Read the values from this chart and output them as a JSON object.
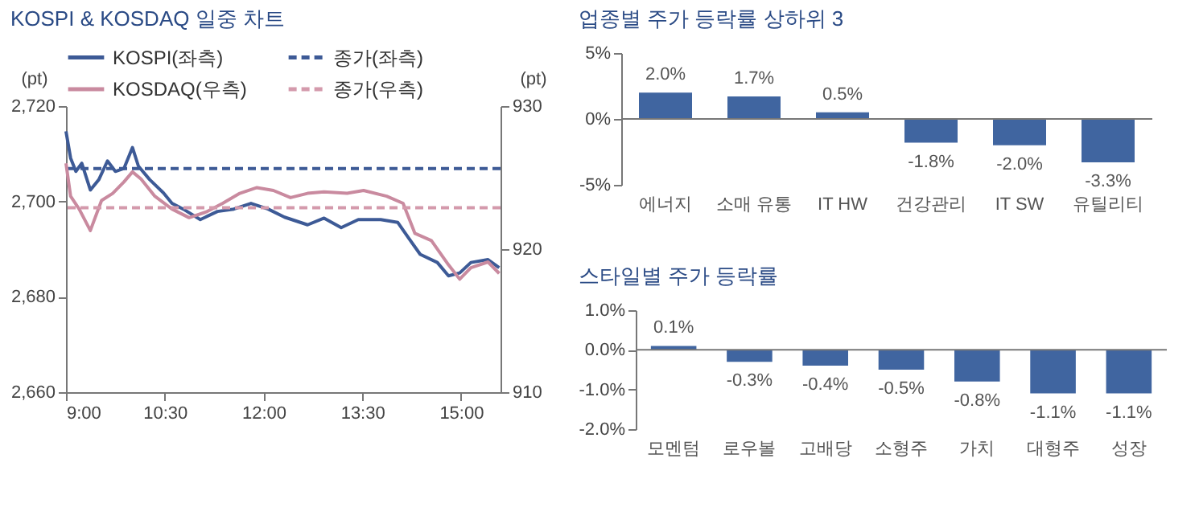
{
  "chart_data": [
    {
      "type": "line",
      "title": "KOSPI & KOSDAQ 일중 차트",
      "ylabel": "(pt)",
      "y2label": "(pt)",
      "legend": "top",
      "xlim": [
        9,
        15.6
      ],
      "xticks": [
        {
          "value": 9,
          "label": "9:00"
        },
        {
          "value": 10.5,
          "label": "10:30"
        },
        {
          "value": 12,
          "label": "12:00"
        },
        {
          "value": 13.5,
          "label": "13:30"
        },
        {
          "value": 15,
          "label": "15:00"
        }
      ],
      "ylim": [
        2660,
        2720
      ],
      "yticks": [
        {
          "value": 2660,
          "label": "2,660"
        },
        {
          "value": 2680,
          "label": "2,680"
        },
        {
          "value": 2700,
          "label": "2,700"
        },
        {
          "value": 2720,
          "label": "2,720"
        }
      ],
      "y2lim": [
        910,
        930
      ],
      "y2ticks": [
        910,
        920,
        930
      ],
      "series": [
        {
          "name": "KOSPI(좌측)",
          "color": "#3d5a96",
          "x": [
            9.0,
            9.07,
            9.15,
            9.24,
            9.37,
            9.5,
            9.63,
            9.75,
            9.88,
            10.01,
            10.1,
            10.27,
            10.48,
            10.61,
            10.78,
            11.04,
            11.3,
            11.55,
            11.81,
            12.07,
            12.32,
            12.67,
            12.92,
            13.18,
            13.44,
            13.78,
            14.04,
            14.21,
            14.38,
            14.64,
            14.81,
            14.98,
            15.15,
            15.41,
            15.58
          ],
          "values": [
            2714.7,
            2709.1,
            2706.3,
            2708,
            2702.4,
            2704.6,
            2708.5,
            2706.3,
            2706.9,
            2711.3,
            2707.4,
            2704.6,
            2701.8,
            2699.6,
            2698.4,
            2696.2,
            2697.9,
            2698.4,
            2699.6,
            2698.4,
            2696.7,
            2695.1,
            2696.5,
            2694.5,
            2696.2,
            2696.2,
            2695.6,
            2692.2,
            2688.9,
            2687.2,
            2684.4,
            2685,
            2687.2,
            2687.8,
            2686.1
          ]
        },
        {
          "name": "KOSDAQ(우측)",
          "color": "#c98a9f",
          "axis": "y2",
          "x": [
            9.0,
            9.07,
            9.2,
            9.37,
            9.54,
            9.71,
            9.88,
            10.01,
            10.14,
            10.35,
            10.61,
            10.87,
            11.13,
            11.38,
            11.64,
            11.9,
            12.15,
            12.41,
            12.67,
            12.92,
            13.27,
            13.52,
            13.87,
            14.12,
            14.3,
            14.55,
            14.81,
            14.98,
            15.15,
            15.41,
            15.58
          ],
          "values": [
            926,
            923.7,
            922.8,
            921.3,
            923.4,
            923.9,
            924.7,
            925.4,
            924.9,
            923.7,
            922.8,
            922.2,
            922.6,
            923.2,
            923.9,
            924.3,
            924.1,
            923.6,
            923.9,
            924,
            923.9,
            924.1,
            923.7,
            923.2,
            921.1,
            920.6,
            918.9,
            917.9,
            918.7,
            919.1,
            918.3
          ]
        }
      ],
      "ref_lines": [
        {
          "axis": "y",
          "value": 2706.9,
          "label": "종가(좌측)",
          "color": "#3d5a96",
          "line_style": "dashed"
        },
        {
          "axis": "y2",
          "value": 922.9,
          "label": "종가(우측)",
          "color": "#d49aac",
          "line_style": "dashed"
        }
      ]
    },
    {
      "type": "bar",
      "title": "업종별 주가 등락률 상하위 3",
      "categories": [
        "에너지",
        "소매 유통",
        "IT HW",
        "건강관리",
        "IT SW",
        "유틸리티"
      ],
      "values": [
        2.0,
        1.7,
        0.5,
        -1.8,
        -2.0,
        -3.3
      ],
      "value_labels": [
        "2.0%",
        "1.7%",
        "0.5%",
        "-1.8%",
        "-2.0%",
        "-3.3%"
      ],
      "color": "#4065a0",
      "ylim": [
        -5,
        5
      ],
      "yticks": [
        {
          "value": -5,
          "label": "-5%"
        },
        {
          "value": 0,
          "label": "0%"
        },
        {
          "value": 5,
          "label": "5%"
        }
      ]
    },
    {
      "type": "bar",
      "title": "스타일별 주가 등락률",
      "categories": [
        "모멘텀",
        "로우볼",
        "고배당",
        "소형주",
        "가치",
        "대형주",
        "성장"
      ],
      "values": [
        0.1,
        -0.3,
        -0.4,
        -0.5,
        -0.8,
        -1.1,
        -1.1
      ],
      "value_labels": [
        "0.1%",
        "-0.3%",
        "-0.4%",
        "-0.5%",
        "-0.8%",
        "-1.1%",
        "-1.1%"
      ],
      "color": "#4065a0",
      "ylim": [
        -2,
        1
      ],
      "yticks": [
        {
          "value": -2,
          "label": "-2.0%"
        },
        {
          "value": -1,
          "label": "-1.0%"
        },
        {
          "value": 0,
          "label": "0.0%"
        },
        {
          "value": 1,
          "label": "1.0%"
        }
      ]
    }
  ]
}
